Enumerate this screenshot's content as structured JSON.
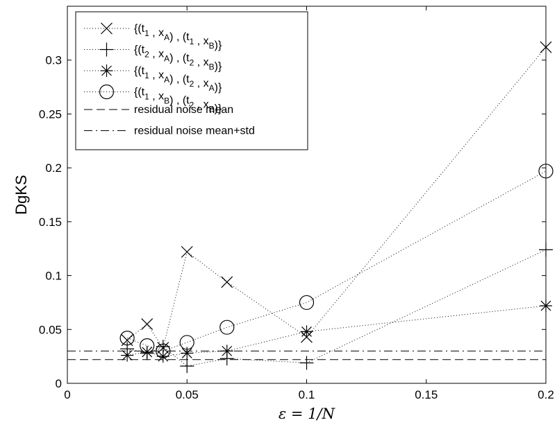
{
  "chart_data": {
    "type": "scatter",
    "title": "",
    "xlabel": "ε = 1/N",
    "ylabel": "DgKS",
    "xlim": [
      0,
      0.2
    ],
    "ylim": [
      0,
      0.35
    ],
    "xticks": [
      0,
      0.05,
      0.1,
      0.15,
      0.2
    ],
    "xtick_labels": [
      "0",
      "0.05",
      "0.1",
      "0.15",
      "0.2"
    ],
    "yticks": [
      0,
      0.05,
      0.1,
      0.15,
      0.2,
      0.25,
      0.3
    ],
    "ytick_labels": [
      "0",
      "0.05",
      "0.1",
      "0.15",
      "0.2",
      "0.25",
      "0.3"
    ],
    "grid": false,
    "legend_position": "top-left",
    "line_color": "#000000",
    "series": [
      {
        "marker": "x",
        "legend": [
          {
            "t": "{(t"
          },
          {
            "t": "1",
            "sub": true
          },
          {
            "t": " , x"
          },
          {
            "t": "A",
            "sub": true
          },
          {
            "t": ") , (t"
          },
          {
            "t": "1",
            "sub": true
          },
          {
            "t": " , x"
          },
          {
            "t": "B",
            "sub": true
          },
          {
            "t": ")}"
          }
        ],
        "x": [
          0.025,
          0.0333,
          0.04,
          0.05,
          0.0667,
          0.1,
          0.2
        ],
        "y": [
          0.04,
          0.055,
          0.033,
          0.122,
          0.094,
          0.043,
          0.312
        ]
      },
      {
        "marker": "+",
        "legend": [
          {
            "t": "{(t"
          },
          {
            "t": "2",
            "sub": true
          },
          {
            "t": " , x"
          },
          {
            "t": "A",
            "sub": true
          },
          {
            "t": ") , (t"
          },
          {
            "t": "2",
            "sub": true
          },
          {
            "t": " , x"
          },
          {
            "t": "B",
            "sub": true
          },
          {
            "t": ")}"
          }
        ],
        "x": [
          0.025,
          0.0333,
          0.04,
          0.05,
          0.0667,
          0.1,
          0.2
        ],
        "y": [
          0.032,
          0.028,
          0.034,
          0.016,
          0.023,
          0.019,
          0.124
        ]
      },
      {
        "marker": "*",
        "legend": [
          {
            "t": "{(t"
          },
          {
            "t": "1",
            "sub": true
          },
          {
            "t": " , x"
          },
          {
            "t": "A",
            "sub": true
          },
          {
            "t": ") , (t"
          },
          {
            "t": "2",
            "sub": true
          },
          {
            "t": " , x"
          },
          {
            "t": "A",
            "sub": true
          },
          {
            "t": ")}"
          }
        ],
        "x": [
          0.025,
          0.0333,
          0.04,
          0.05,
          0.0667,
          0.1,
          0.2
        ],
        "y": [
          0.026,
          0.029,
          0.025,
          0.028,
          0.03,
          0.048,
          0.072
        ]
      },
      {
        "marker": "o",
        "legend": [
          {
            "t": "{(t"
          },
          {
            "t": "1",
            "sub": true
          },
          {
            "t": " , x"
          },
          {
            "t": "B",
            "sub": true
          },
          {
            "t": ") , (t"
          },
          {
            "t": "2",
            "sub": true
          },
          {
            "t": " , x"
          },
          {
            "t": "B",
            "sub": true
          },
          {
            "t": ")}"
          }
        ],
        "x": [
          0.025,
          0.0333,
          0.04,
          0.05,
          0.0667,
          0.1,
          0.2
        ],
        "y": [
          0.042,
          0.035,
          0.03,
          0.038,
          0.052,
          0.075,
          0.197
        ]
      }
    ],
    "reference_lines": [
      {
        "name": "residual noise mean",
        "style": "dashed",
        "y": 0.022
      },
      {
        "name": "residual noise mean+std",
        "style": "dashdot",
        "y": 0.03
      }
    ]
  }
}
